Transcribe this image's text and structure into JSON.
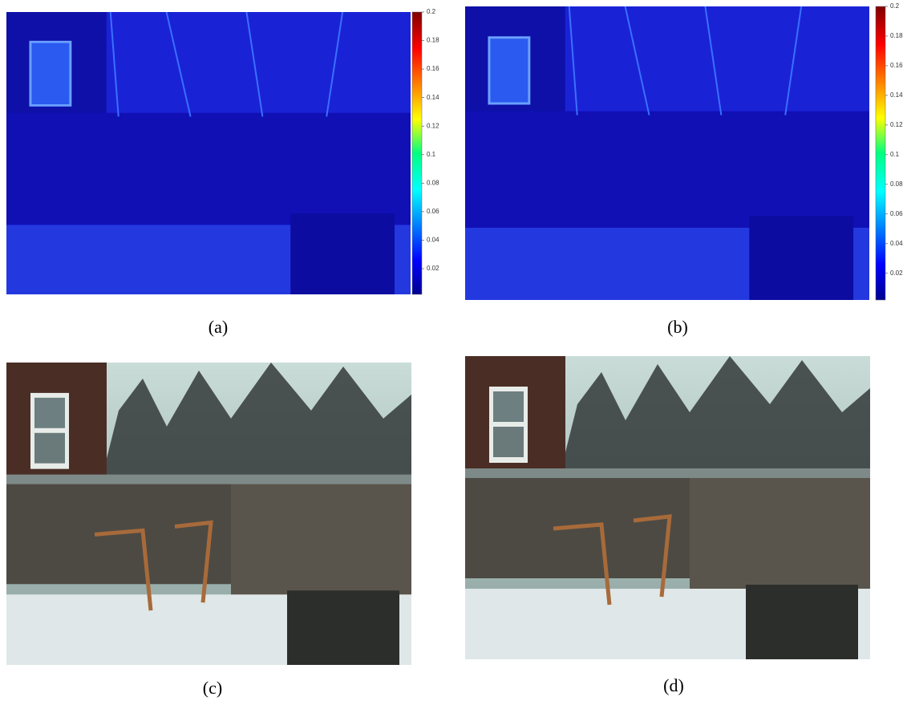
{
  "panels": [
    {
      "caption": "(a)",
      "colorbar": {
        "lim": [
          0.002,
          0.2
        ],
        "ticks": [
          0.02,
          0.04,
          0.06,
          0.08,
          0.1,
          0.12,
          0.14,
          0.16,
          0.18,
          0.2
        ]
      }
    },
    {
      "caption": "(b)",
      "colorbar": {
        "lim": [
          0.002,
          0.2
        ],
        "ticks": [
          0.02,
          0.04,
          0.06,
          0.08,
          0.1,
          0.12,
          0.14,
          0.16,
          0.18,
          0.2
        ]
      }
    },
    {
      "caption": "(c)"
    },
    {
      "caption": "(d)"
    }
  ]
}
